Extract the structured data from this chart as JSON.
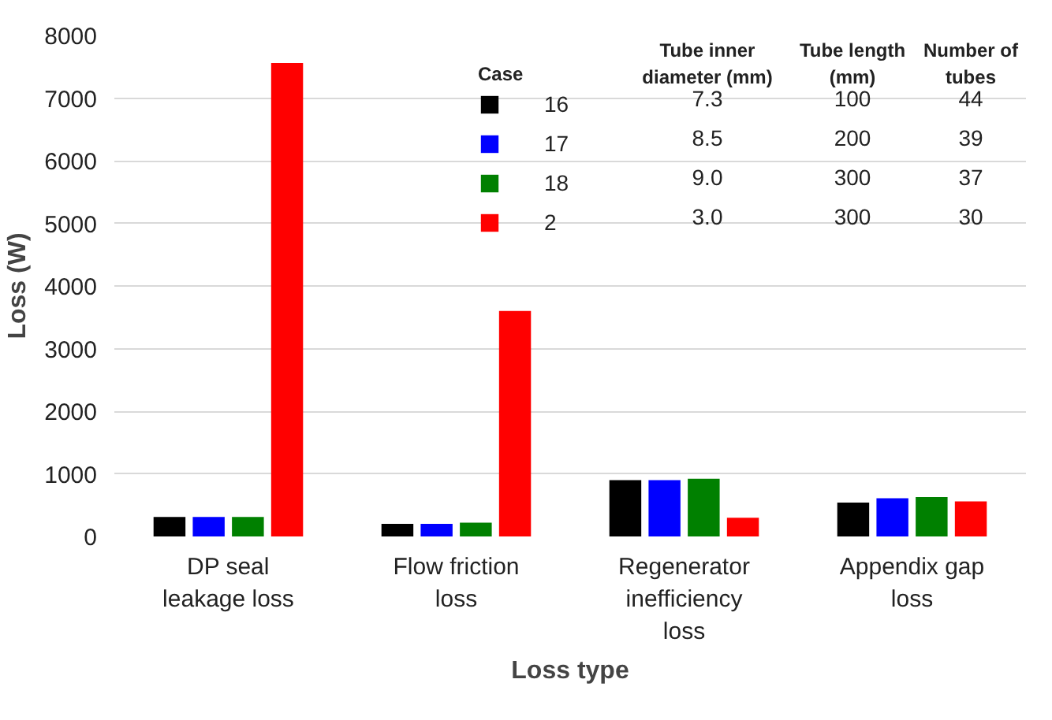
{
  "chart_data": {
    "type": "bar",
    "xlabel": "Loss type",
    "ylabel": "Loss (W)",
    "categories": [
      "DP seal leakage loss",
      "Flow friction loss",
      "Regenerator inefficiency loss",
      "Appendix gap loss"
    ],
    "series": [
      {
        "name": "16",
        "color": "#000000",
        "values": [
          310,
          200,
          900,
          540
        ]
      },
      {
        "name": "17",
        "color": "#0000ff",
        "values": [
          310,
          200,
          900,
          610
        ]
      },
      {
        "name": "18",
        "color": "#008000",
        "values": [
          310,
          220,
          920,
          630
        ]
      },
      {
        "name": "2",
        "color": "#ff0000",
        "values": [
          7560,
          3600,
          300,
          560
        ]
      }
    ],
    "ylim": [
      0,
      8000
    ],
    "yticks": [
      0,
      1000,
      2000,
      3000,
      4000,
      5000,
      6000,
      7000,
      8000
    ],
    "grid": "y",
    "legend": "top",
    "legend_title": "Case",
    "annotations": [
      "Tube inner diameter (mm)",
      "Tube length (mm)",
      "Number of tubes",
      "7.3",
      "100",
      "44",
      "8.5",
      "200",
      "39",
      "9.0",
      "300",
      "37",
      "3.0",
      "300",
      "30"
    ]
  }
}
